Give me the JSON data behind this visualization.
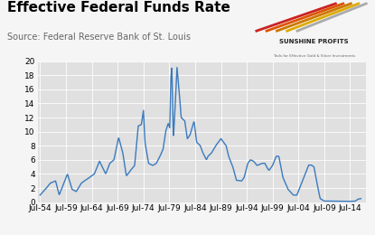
{
  "title": "Effective Federal Funds Rate",
  "source": "Source: Federal Reserve Bank of St. Louis",
  "line_color": "#3a7abf",
  "plot_bg_color": "#e0e0e0",
  "outer_bg_color": "#f5f5f5",
  "ylim": [
    0,
    20
  ],
  "yticks": [
    0,
    2,
    4,
    6,
    8,
    10,
    12,
    14,
    16,
    18,
    20
  ],
  "xtick_labels": [
    "Jul-54",
    "Jul-59",
    "Jul-64",
    "Jul-69",
    "Jul-74",
    "Jul-79",
    "Jul-84",
    "Jul-89",
    "Jul-94",
    "Jul-99",
    "Jul-04",
    "Jul-09",
    "Jul-14"
  ],
  "title_fontsize": 11,
  "source_fontsize": 7,
  "tick_fontsize": 6.5,
  "line_width": 1.0,
  "breakpoints": [
    [
      1954.5,
      1.0
    ],
    [
      1955.5,
      1.8
    ],
    [
      1956.5,
      2.7
    ],
    [
      1957.5,
      3.0
    ],
    [
      1958.2,
      1.0
    ],
    [
      1959.0,
      2.5
    ],
    [
      1959.8,
      4.0
    ],
    [
      1960.7,
      1.8
    ],
    [
      1961.5,
      1.5
    ],
    [
      1962.5,
      2.7
    ],
    [
      1963.5,
      3.2
    ],
    [
      1965.0,
      4.0
    ],
    [
      1966.0,
      5.8
    ],
    [
      1967.2,
      4.0
    ],
    [
      1968.0,
      5.5
    ],
    [
      1968.8,
      6.0
    ],
    [
      1969.7,
      9.2
    ],
    [
      1970.5,
      7.0
    ],
    [
      1971.2,
      3.7
    ],
    [
      1972.0,
      4.5
    ],
    [
      1972.8,
      5.2
    ],
    [
      1973.5,
      10.8
    ],
    [
      1974.1,
      11.0
    ],
    [
      1974.5,
      13.0
    ],
    [
      1974.8,
      8.5
    ],
    [
      1975.5,
      5.5
    ],
    [
      1976.3,
      5.2
    ],
    [
      1977.0,
      5.5
    ],
    [
      1977.7,
      6.5
    ],
    [
      1978.3,
      7.5
    ],
    [
      1978.8,
      10.0
    ],
    [
      1979.3,
      11.2
    ],
    [
      1979.6,
      10.5
    ],
    [
      1979.8,
      17.5
    ],
    [
      1980.0,
      19.0
    ],
    [
      1980.3,
      9.0
    ],
    [
      1980.6,
      13.0
    ],
    [
      1981.0,
      19.1
    ],
    [
      1981.5,
      15.0
    ],
    [
      1981.8,
      12.0
    ],
    [
      1982.5,
      11.5
    ],
    [
      1983.0,
      9.0
    ],
    [
      1983.5,
      9.5
    ],
    [
      1984.3,
      11.5
    ],
    [
      1984.8,
      8.5
    ],
    [
      1985.5,
      8.0
    ],
    [
      1986.0,
      7.0
    ],
    [
      1986.7,
      6.0
    ],
    [
      1987.0,
      6.5
    ],
    [
      1987.7,
      7.0
    ],
    [
      1988.5,
      8.0
    ],
    [
      1989.5,
      9.0
    ],
    [
      1990.0,
      8.5
    ],
    [
      1990.5,
      8.0
    ],
    [
      1991.0,
      6.5
    ],
    [
      1991.8,
      5.0
    ],
    [
      1992.5,
      3.1
    ],
    [
      1993.5,
      3.0
    ],
    [
      1994.0,
      3.5
    ],
    [
      1994.7,
      5.5
    ],
    [
      1995.2,
      6.0
    ],
    [
      1995.8,
      5.8
    ],
    [
      1996.5,
      5.2
    ],
    [
      1997.5,
      5.5
    ],
    [
      1998.0,
      5.5
    ],
    [
      1998.5,
      4.8
    ],
    [
      1998.8,
      4.5
    ],
    [
      1999.5,
      5.2
    ],
    [
      2000.2,
      6.5
    ],
    [
      2000.7,
      6.5
    ],
    [
      2001.5,
      3.5
    ],
    [
      2002.5,
      1.8
    ],
    [
      2003.5,
      1.0
    ],
    [
      2004.2,
      1.0
    ],
    [
      2005.0,
      2.5
    ],
    [
      2005.8,
      4.0
    ],
    [
      2006.5,
      5.25
    ],
    [
      2007.0,
      5.25
    ],
    [
      2007.5,
      5.0
    ],
    [
      2008.0,
      3.0
    ],
    [
      2008.7,
      0.5
    ],
    [
      2009.5,
      0.15
    ],
    [
      2014.5,
      0.1
    ],
    [
      2015.5,
      0.15
    ],
    [
      2016.0,
      0.4
    ],
    [
      2016.5,
      0.5
    ]
  ]
}
